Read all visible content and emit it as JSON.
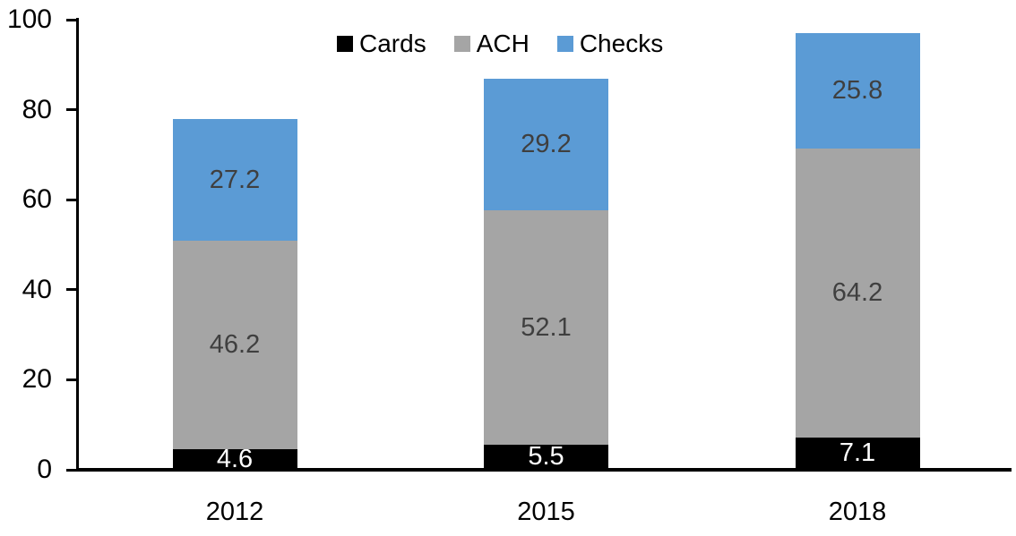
{
  "chart_data": {
    "type": "bar",
    "stacked": true,
    "title": "",
    "categories": [
      "2012",
      "2015",
      "2018"
    ],
    "series": [
      {
        "name": "Cards",
        "color": "#000000",
        "label_color": "#ffffff",
        "values": [
          4.6,
          5.5,
          7.1
        ]
      },
      {
        "name": "ACH",
        "color": "#a5a5a5",
        "label_color": "#3f3f3f",
        "values": [
          46.2,
          52.1,
          64.2
        ]
      },
      {
        "name": "Checks",
        "color": "#5b9bd5",
        "label_color": "#3f3f3f",
        "values": [
          27.2,
          29.2,
          25.8
        ]
      }
    ],
    "totals": [
      78.0,
      86.8,
      97.1
    ],
    "xlabel": "",
    "ylabel": "",
    "ylim": [
      0,
      100
    ],
    "yticks": [
      0,
      20,
      40,
      60,
      80,
      100
    ],
    "grid": false,
    "legend_position": "top",
    "axis_color": "#000000",
    "background_color": "#ffffff"
  }
}
